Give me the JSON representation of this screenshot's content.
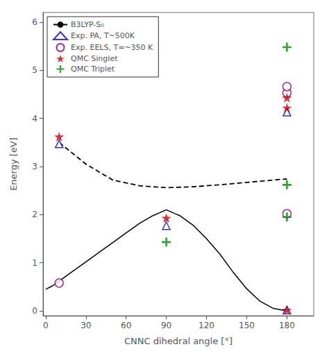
{
  "chart_data": {
    "type": "line",
    "xlabel": "CNNC dihedral angle [°]",
    "ylabel": "Energy [eV]",
    "xlim": [
      -2,
      200
    ],
    "ylim": [
      -0.1,
      6.2
    ],
    "xticks": [
      0,
      30,
      60,
      90,
      120,
      150,
      180
    ],
    "yticks": [
      0,
      1,
      2,
      3,
      4,
      5,
      6
    ],
    "grid": false,
    "legend": "upper left",
    "series": [
      {
        "name": "B3LYP-S₀",
        "type": "line",
        "line_style": "solid",
        "color": "#000000",
        "x": [
          0,
          5,
          10,
          20,
          30,
          40,
          50,
          60,
          70,
          80,
          90,
          100,
          110,
          120,
          130,
          140,
          150,
          160,
          170,
          180
        ],
        "values": [
          0.45,
          0.52,
          0.62,
          0.82,
          1.02,
          1.22,
          1.42,
          1.62,
          1.82,
          1.98,
          2.1,
          1.98,
          1.78,
          1.5,
          1.18,
          0.8,
          0.46,
          0.2,
          0.05,
          0.0
        ]
      },
      {
        "type": "line",
        "line_style": "dashed",
        "color": "#000000",
        "x": [
          10,
          30,
          50,
          70,
          90,
          110,
          130,
          150,
          170,
          180
        ],
        "values": [
          3.5,
          3.05,
          2.72,
          2.6,
          2.56,
          2.58,
          2.62,
          2.67,
          2.72,
          2.74
        ]
      },
      {
        "name": "Exp. PA, T~500K",
        "type": "scatter",
        "marker": "open_triangle",
        "color": "#0000cc",
        "x": [
          10,
          90,
          180,
          180
        ],
        "values": [
          3.47,
          1.77,
          0.02,
          4.13
        ]
      },
      {
        "name": "Exp. EELS, T=~350 K",
        "type": "scatter",
        "marker": "open_circle",
        "color": "#800080",
        "x": [
          10,
          180,
          180,
          180
        ],
        "values": [
          0.58,
          2.02,
          4.53,
          4.66
        ]
      },
      {
        "name": "QMC Singlet",
        "type": "scatter",
        "marker": "star",
        "color": "#cc0000",
        "x": [
          10,
          90,
          180,
          180,
          180
        ],
        "values": [
          3.62,
          1.93,
          0.02,
          4.22,
          4.43
        ]
      },
      {
        "name": "QMC Triplet",
        "type": "scatter",
        "marker": "plus",
        "color": "#008800",
        "x": [
          90,
          180,
          180,
          180
        ],
        "values": [
          1.43,
          1.95,
          2.62,
          5.48
        ]
      }
    ]
  }
}
